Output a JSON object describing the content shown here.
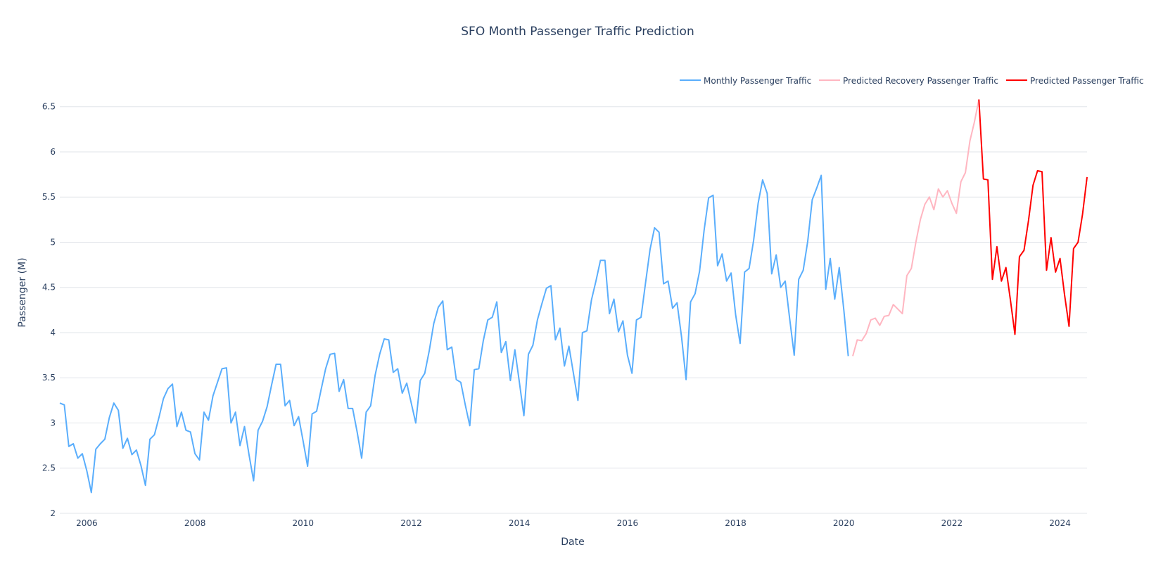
{
  "chart_data": {
    "type": "line",
    "title": "SFO Month Passenger Traffic Prediction",
    "xlabel": "Date",
    "ylabel": "Passenger (M)",
    "x_range": [
      "2005-07",
      "2024-07"
    ],
    "ylim": [
      2,
      6.7
    ],
    "grid": "horizontal",
    "legend_position": "top-right",
    "x_ticks": [
      "2006",
      "2008",
      "2010",
      "2012",
      "2014",
      "2016",
      "2018",
      "2020",
      "2022",
      "2024"
    ],
    "y_ticks": [
      "2",
      "2.5",
      "3",
      "3.5",
      "4",
      "4.5",
      "5",
      "5.5",
      "6",
      "6.5"
    ],
    "colors": {
      "background": "#ffffff",
      "grid": "#e2e5ea",
      "text": "#2a3f5f"
    },
    "series": [
      {
        "name": "Monthly Passenger Traffic",
        "color": "#5aaefc",
        "start": "2005-07",
        "values": [
          3.22,
          3.2,
          2.74,
          2.77,
          2.61,
          2.66,
          2.47,
          2.23,
          2.71,
          2.77,
          2.82,
          3.06,
          3.22,
          3.14,
          2.72,
          2.83,
          2.65,
          2.7,
          2.53,
          2.31,
          2.82,
          2.87,
          3.06,
          3.27,
          3.38,
          3.43,
          2.96,
          3.12,
          2.92,
          2.9,
          2.66,
          2.59,
          3.12,
          3.03,
          3.3,
          3.45,
          3.6,
          3.61,
          3.0,
          3.12,
          2.75,
          2.96,
          2.65,
          2.36,
          2.92,
          3.02,
          3.18,
          3.42,
          3.65,
          3.65,
          3.19,
          3.25,
          2.97,
          3.07,
          2.8,
          2.52,
          3.1,
          3.13,
          3.37,
          3.6,
          3.76,
          3.77,
          3.35,
          3.48,
          3.16,
          3.16,
          2.9,
          2.61,
          3.12,
          3.19,
          3.53,
          3.76,
          3.93,
          3.92,
          3.56,
          3.6,
          3.33,
          3.44,
          3.22,
          3.0,
          3.47,
          3.55,
          3.8,
          4.1,
          4.28,
          4.35,
          3.81,
          3.84,
          3.48,
          3.45,
          3.2,
          2.97,
          3.59,
          3.6,
          3.91,
          4.14,
          4.17,
          4.34,
          3.78,
          3.9,
          3.47,
          3.81,
          3.45,
          3.08,
          3.76,
          3.86,
          4.14,
          4.32,
          4.49,
          4.52,
          3.92,
          4.05,
          3.63,
          3.85,
          3.55,
          3.25,
          4.0,
          4.02,
          4.36,
          4.57,
          4.8,
          4.8,
          4.21,
          4.37,
          4.01,
          4.13,
          3.75,
          3.55,
          4.14,
          4.17,
          4.55,
          4.92,
          5.16,
          5.11,
          4.54,
          4.57,
          4.27,
          4.33,
          3.95,
          3.48,
          4.34,
          4.43,
          4.68,
          5.13,
          5.49,
          5.52,
          4.74,
          4.87,
          4.57,
          4.66,
          4.2,
          3.88,
          4.67,
          4.71,
          5.02,
          5.43,
          5.69,
          5.54,
          4.65,
          4.86,
          4.5,
          4.57,
          4.15,
          3.75,
          4.59,
          4.69,
          5.01,
          5.47,
          5.6,
          5.74,
          4.48,
          4.82,
          4.37,
          4.72,
          4.26,
          3.74
        ]
      },
      {
        "name": "Predicted Recovery Passenger Traffic",
        "color": "#ffb6c1",
        "start": "2020-03",
        "values": [
          3.74,
          3.92,
          3.91,
          3.99,
          4.14,
          4.16,
          4.08,
          4.18,
          4.19,
          4.31,
          4.26,
          4.21,
          4.63,
          4.71,
          5.0,
          5.25,
          5.42,
          5.5,
          5.36,
          5.59,
          5.5,
          5.57,
          5.43,
          5.32,
          5.67,
          5.77,
          6.12,
          6.33,
          6.58
        ]
      },
      {
        "name": "Predicted Passenger Traffic",
        "color": "#ff0000",
        "start": "2022-07",
        "values": [
          6.58,
          5.7,
          5.69,
          4.59,
          4.95,
          4.57,
          4.72,
          4.36,
          3.98,
          4.84,
          4.91,
          5.24,
          5.63,
          5.79,
          5.78,
          4.69,
          5.05,
          4.67,
          4.82,
          4.42,
          4.07,
          4.93,
          5.0,
          5.31,
          5.72
        ]
      }
    ]
  }
}
